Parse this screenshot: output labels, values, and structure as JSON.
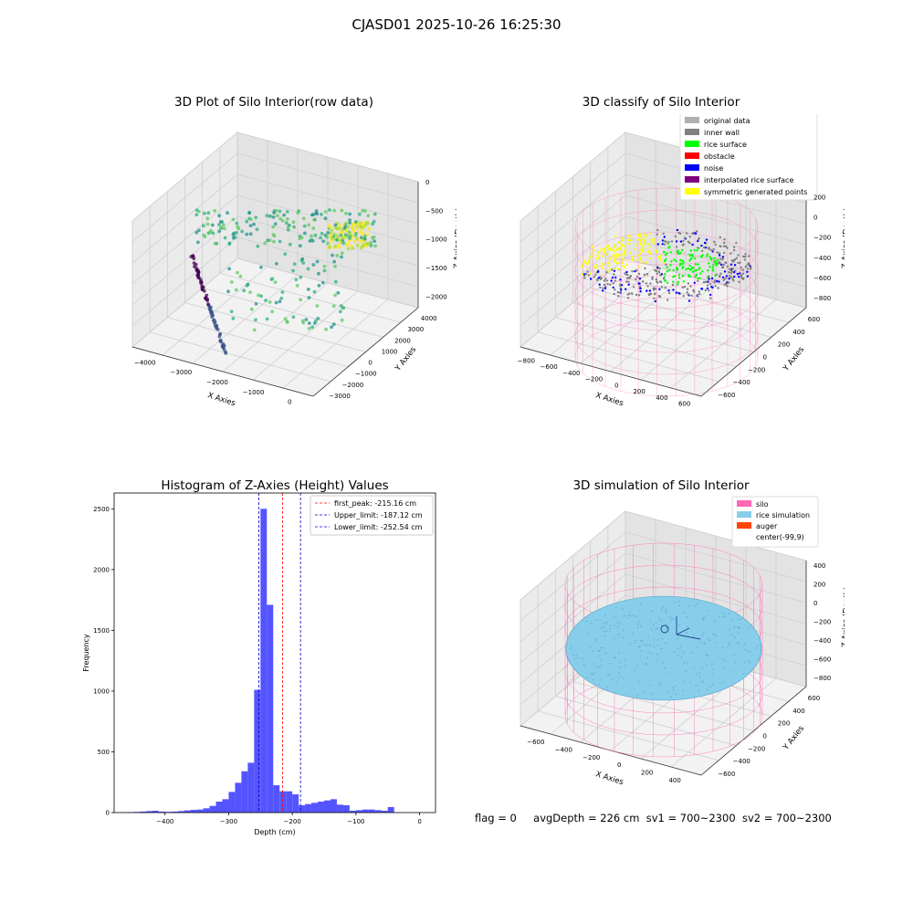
{
  "figure": {
    "suptitle": "CJASD01 2025-10-26 16:25:30",
    "status": {
      "flag": "flag = 0",
      "avg_depth": "avgDepth = 226 cm",
      "sv1": "sv1 = 700~2300",
      "sv2": "sv2 = 700~2300"
    }
  },
  "chart_data": [
    {
      "type": "scatter",
      "projection": "3d",
      "title": "3D Plot of Silo Interior(row data)",
      "xlabel": "X Axies",
      "ylabel": "Y Axies",
      "zlabel": "Z Axies (Depth)",
      "x_ticks": [
        -4000,
        -3000,
        -2000,
        -1000,
        0
      ],
      "y_ticks": [
        -3000,
        -2000,
        -1000,
        0,
        1000,
        2000,
        3000,
        4000
      ],
      "z_ticks": [
        -2000,
        -1500,
        -1000,
        -500,
        0
      ],
      "x_tick_labels": [
        "−4000",
        "−3000",
        "−2000",
        "−1000",
        "0"
      ],
      "y_tick_labels": [
        "−3000",
        "−2000",
        "−1000",
        "0",
        "1000",
        "2000",
        "3000",
        "4000"
      ],
      "z_tick_labels": [
        "−2000",
        "−1500",
        "−1000",
        "−500",
        "0"
      ],
      "xlim": [
        -4500,
        500
      ],
      "ylim": [
        -3500,
        4500
      ],
      "zlim": [
        -2200,
        0
      ],
      "colormap": "viridis by depth",
      "grid": true
    },
    {
      "type": "scatter",
      "projection": "3d",
      "title": "3D classify of Silo Interior",
      "xlabel": "X Axies",
      "ylabel": "Y Axies",
      "zlabel": "Z Axies (Depth)",
      "x_ticks": [
        -800,
        -600,
        -400,
        -200,
        0,
        200,
        400,
        600
      ],
      "y_ticks": [
        -600,
        -400,
        -200,
        0,
        200,
        400,
        600
      ],
      "z_ticks": [
        -800,
        -600,
        -400,
        -200,
        0,
        200
      ],
      "x_tick_labels": [
        "−800",
        "−600",
        "−400",
        "−200",
        "0",
        "200",
        "400",
        "600"
      ],
      "y_tick_labels": [
        "−600",
        "−400",
        "−200",
        "0",
        "200",
        "400",
        "600"
      ],
      "z_tick_labels": [
        "−800",
        "−600",
        "−400",
        "−200",
        "0",
        "200"
      ],
      "legend_position": "top-right",
      "legend": [
        {
          "label": "original data",
          "color": "#b0b0b0"
        },
        {
          "label": "inner wall",
          "color": "#808080"
        },
        {
          "label": "rice surface",
          "color": "#00ff00"
        },
        {
          "label": "obstacle",
          "color": "#ff0000"
        },
        {
          "label": "noise",
          "color": "#0000ff"
        },
        {
          "label": "interpolated rice surface",
          "color": "#800080"
        },
        {
          "label": "symmetric generated points",
          "color": "#ffff00"
        }
      ],
      "wireframe_color": "#ff69b4",
      "grid": true
    },
    {
      "type": "bar",
      "subtype": "histogram",
      "title": "Histogram of Z-Axies (Height) Values",
      "xlabel": "Depth (cm)",
      "ylabel": "Frequency",
      "xlim": [
        -480,
        25
      ],
      "ylim": [
        0,
        2630
      ],
      "x_ticks": [
        -400,
        -300,
        -200,
        -100,
        0
      ],
      "y_ticks": [
        0,
        500,
        1000,
        1500,
        2000,
        2500
      ],
      "x_tick_labels": [
        "−400",
        "−300",
        "−200",
        "−100",
        "0"
      ],
      "y_tick_labels": [
        "0",
        "500",
        "1000",
        "1500",
        "2000",
        "2500"
      ],
      "bin_start": -470,
      "bin_width": 10,
      "values": [
        2,
        3,
        5,
        8,
        12,
        15,
        8,
        6,
        8,
        12,
        18,
        22,
        25,
        35,
        55,
        90,
        110,
        170,
        245,
        340,
        410,
        1010,
        2500,
        1710,
        225,
        175,
        175,
        150,
        60,
        70,
        80,
        90,
        100,
        110,
        65,
        60,
        15,
        20,
        25,
        25,
        20,
        15,
        45
      ],
      "bar_color": "#4b4bff",
      "lines": [
        {
          "label": "first_peak: -215.16 cm",
          "x": -215.16,
          "color": "#ff0000"
        },
        {
          "label": "Upper_limit: -187.12 cm",
          "x": -187.12,
          "color": "#0000cc"
        },
        {
          "label": "Lower_limit: -252.54 cm",
          "x": -252.54,
          "color": "#0000cc"
        }
      ],
      "legend_position": "top-right",
      "grid": false
    },
    {
      "type": "scatter",
      "projection": "3d",
      "title": "3D simulation of Silo Interior",
      "xlabel": "X Axies",
      "ylabel": "Y Axies",
      "zlabel": "Z Axies (Depth)",
      "x_ticks": [
        -600,
        -400,
        -200,
        0,
        200,
        400
      ],
      "y_ticks": [
        -600,
        -400,
        -200,
        0,
        200,
        400,
        600
      ],
      "z_ticks": [
        -800,
        -600,
        -400,
        -200,
        0,
        200,
        400
      ],
      "x_tick_labels": [
        "−600",
        "−400",
        "−200",
        "0",
        "200",
        "400"
      ],
      "y_tick_labels": [
        "−600",
        "−400",
        "−200",
        "0",
        "200",
        "400",
        "600"
      ],
      "z_tick_labels": [
        "−800",
        "−600",
        "−400",
        "−200",
        "0",
        "200",
        "400"
      ],
      "legend_position": "top-right",
      "legend": [
        {
          "label": "silo",
          "color": "#ff69b4"
        },
        {
          "label": "rice simulation",
          "color": "#87ceeb"
        },
        {
          "label": "auger",
          "color": "#ff4500"
        },
        {
          "label": "center(-99,9)",
          "color": "#ffffff"
        }
      ],
      "grid": true
    }
  ]
}
